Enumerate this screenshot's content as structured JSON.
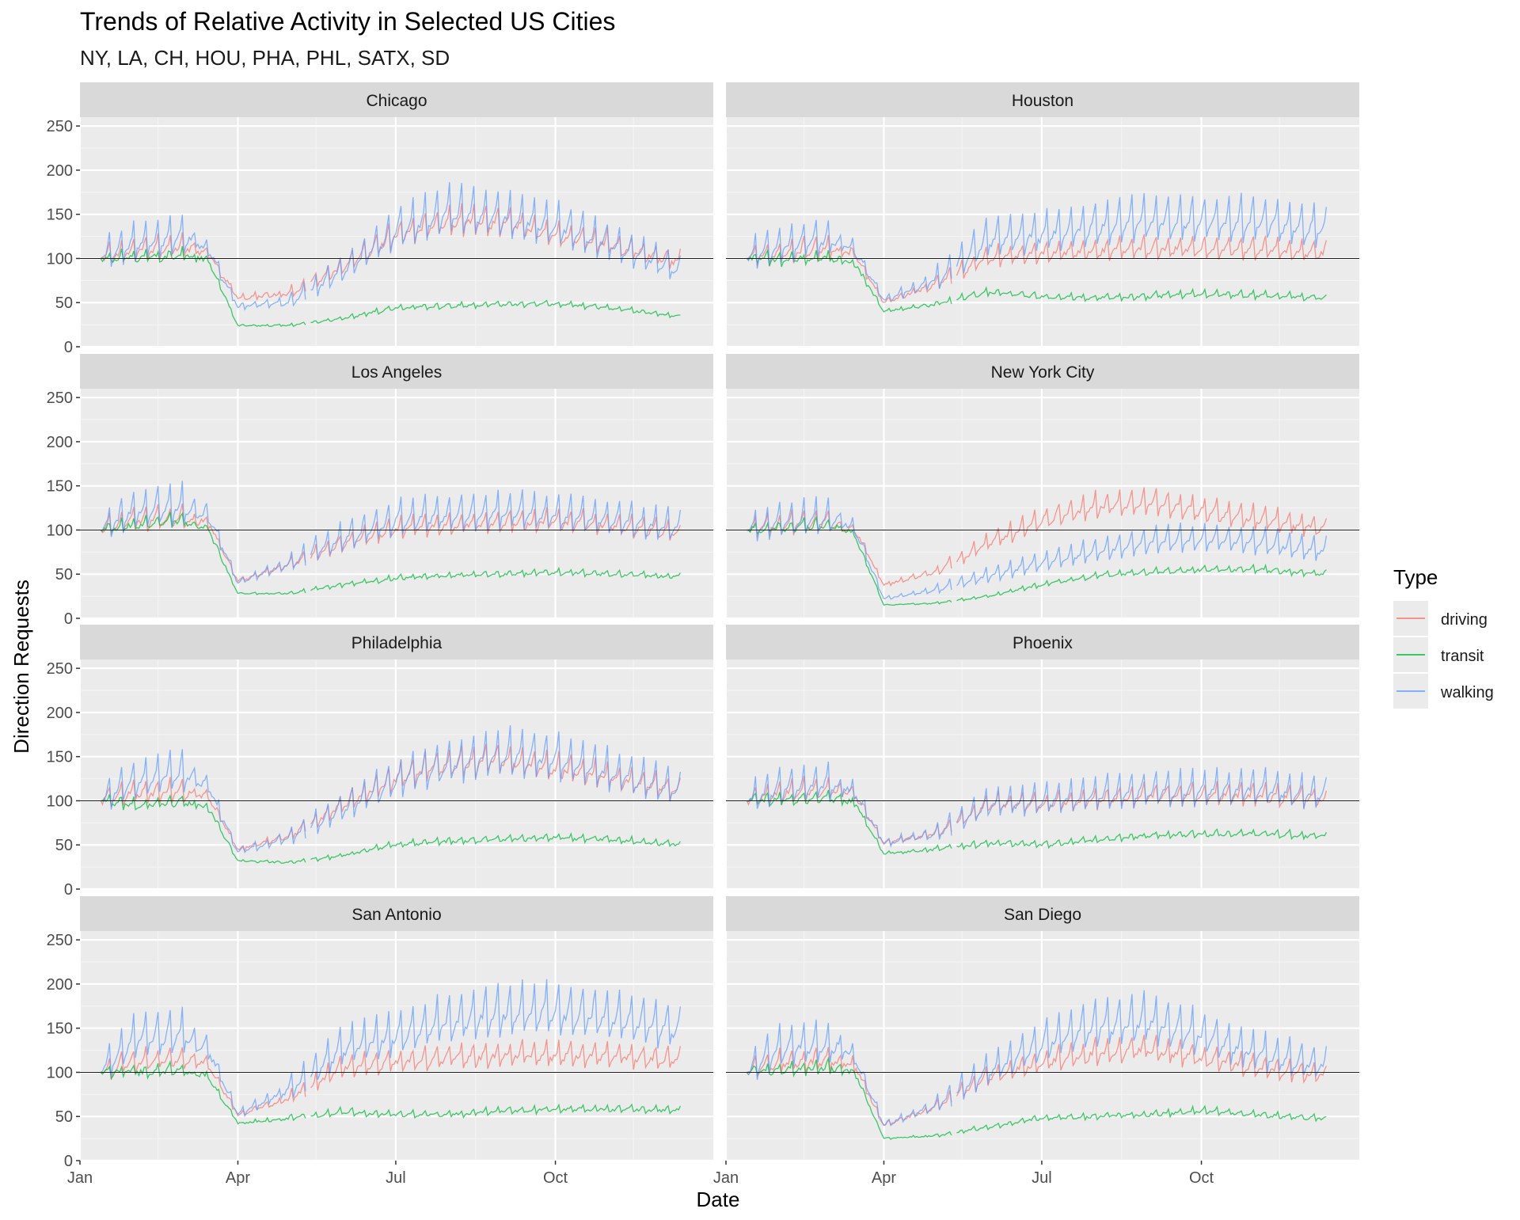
{
  "chart_data": {
    "type": "line",
    "title": "Trends of Relative Activity in Selected US Cities",
    "subtitle": "NY, LA, CH, HOU, PHA, PHL, SATX, SD",
    "xlabel": "Date",
    "ylabel": "Direction Requests",
    "x_axis": {
      "type": "date",
      "range": [
        "2020-01-01",
        "2020-12-31"
      ],
      "ticks": [
        "2020-01-01",
        "2020-04-01",
        "2020-07-01",
        "2020-10-01"
      ],
      "tick_labels": [
        "Jan",
        "Apr",
        "Jul",
        "Oct"
      ]
    },
    "ylim": [
      0,
      260
    ],
    "y_ticks": [
      0,
      50,
      100,
      150,
      200,
      250
    ],
    "baseline": 100,
    "grid": true,
    "legend": {
      "title": "Type",
      "position": "right",
      "entries": [
        "driving",
        "transit",
        "walking"
      ]
    },
    "colors": {
      "driving": "#F8766D",
      "transit": "#00BA38",
      "walking": "#619CFF"
    },
    "date_range": [
      "2020-01-13",
      "2020-12-12"
    ],
    "gap": [
      "2020-05-11",
      "2020-05-12"
    ],
    "panels": [
      {
        "name": "Chicago",
        "series": [
          {
            "name": "driving",
            "x": [
              "2020-01-13",
              "2020-02-01",
              "2020-03-01",
              "2020-03-15",
              "2020-04-01",
              "2020-05-01",
              "2020-06-01",
              "2020-07-01",
              "2020-08-01",
              "2020-09-01",
              "2020-10-01",
              "2020-11-01",
              "2020-12-12"
            ],
            "y": [
              100,
              108,
              112,
              105,
              55,
              60,
              90,
              125,
              140,
              140,
              125,
              115,
              95
            ]
          },
          {
            "name": "transit",
            "x": [
              "2020-01-13",
              "2020-02-01",
              "2020-03-01",
              "2020-03-15",
              "2020-04-01",
              "2020-05-01",
              "2020-06-01",
              "2020-07-01",
              "2020-08-01",
              "2020-09-01",
              "2020-10-01",
              "2020-11-01",
              "2020-12-12"
            ],
            "y": [
              100,
              100,
              103,
              98,
              24,
              24,
              32,
              44,
              46,
              48,
              48,
              44,
              34
            ]
          },
          {
            "name": "walking",
            "x": [
              "2020-01-13",
              "2020-02-01",
              "2020-03-01",
              "2020-03-15",
              "2020-04-01",
              "2020-05-01",
              "2020-06-01",
              "2020-07-01",
              "2020-08-01",
              "2020-09-01",
              "2020-10-01",
              "2020-11-01",
              "2020-12-12"
            ],
            "y": [
              100,
              115,
              125,
              110,
              45,
              50,
              85,
              130,
              150,
              145,
              135,
              115,
              85
            ]
          }
        ]
      },
      {
        "name": "Houston",
        "series": [
          {
            "name": "driving",
            "x": [
              "2020-01-13",
              "2020-02-01",
              "2020-03-01",
              "2020-03-15",
              "2020-04-01",
              "2020-05-01",
              "2020-06-01",
              "2020-07-01",
              "2020-08-01",
              "2020-09-01",
              "2020-10-01",
              "2020-11-01",
              "2020-12-12"
            ],
            "y": [
              100,
              105,
              110,
              105,
              50,
              70,
              100,
              105,
              108,
              110,
              110,
              110,
              105
            ]
          },
          {
            "name": "transit",
            "x": [
              "2020-01-13",
              "2020-02-01",
              "2020-03-01",
              "2020-03-15",
              "2020-04-01",
              "2020-05-01",
              "2020-06-01",
              "2020-07-01",
              "2020-08-01",
              "2020-09-01",
              "2020-10-01",
              "2020-11-01",
              "2020-12-12"
            ],
            "y": [
              100,
              98,
              100,
              95,
              40,
              48,
              62,
              56,
              55,
              57,
              60,
              58,
              55
            ]
          },
          {
            "name": "walking",
            "x": [
              "2020-01-13",
              "2020-02-01",
              "2020-03-01",
              "2020-03-15",
              "2020-04-01",
              "2020-05-01",
              "2020-06-01",
              "2020-07-01",
              "2020-08-01",
              "2020-09-01",
              "2020-10-01",
              "2020-11-01",
              "2020-12-12"
            ],
            "y": [
              100,
              112,
              120,
              110,
              52,
              75,
              120,
              125,
              135,
              140,
              140,
              140,
              130
            ]
          }
        ]
      },
      {
        "name": "Los Angeles",
        "series": [
          {
            "name": "driving",
            "x": [
              "2020-01-13",
              "2020-02-01",
              "2020-03-01",
              "2020-03-15",
              "2020-04-01",
              "2020-05-01",
              "2020-06-01",
              "2020-07-01",
              "2020-08-01",
              "2020-09-01",
              "2020-10-01",
              "2020-11-01",
              "2020-12-12"
            ],
            "y": [
              100,
              110,
              112,
              108,
              42,
              60,
              85,
              100,
              105,
              108,
              108,
              105,
              95
            ]
          },
          {
            "name": "transit",
            "x": [
              "2020-01-13",
              "2020-02-01",
              "2020-03-01",
              "2020-03-15",
              "2020-04-01",
              "2020-05-01",
              "2020-06-01",
              "2020-07-01",
              "2020-08-01",
              "2020-09-01",
              "2020-10-01",
              "2020-11-01",
              "2020-12-12"
            ],
            "y": [
              100,
              105,
              110,
              100,
              28,
              28,
              38,
              45,
              48,
              50,
              52,
              50,
              47
            ]
          },
          {
            "name": "walking",
            "x": [
              "2020-01-13",
              "2020-02-01",
              "2020-03-01",
              "2020-03-15",
              "2020-04-01",
              "2020-05-01",
              "2020-06-01",
              "2020-07-01",
              "2020-08-01",
              "2020-09-01",
              "2020-10-01",
              "2020-11-01",
              "2020-12-12"
            ],
            "y": [
              100,
              120,
              125,
              115,
              40,
              62,
              90,
              110,
              115,
              118,
              115,
              110,
              100
            ]
          }
        ]
      },
      {
        "name": "New York City",
        "series": [
          {
            "name": "driving",
            "x": [
              "2020-01-13",
              "2020-02-01",
              "2020-03-01",
              "2020-03-15",
              "2020-04-01",
              "2020-05-01",
              "2020-06-01",
              "2020-07-01",
              "2020-08-01",
              "2020-09-01",
              "2020-10-01",
              "2020-11-01",
              "2020-12-12"
            ],
            "y": [
              100,
              105,
              108,
              100,
              38,
              52,
              85,
              110,
              125,
              130,
              120,
              112,
              100
            ]
          },
          {
            "name": "transit",
            "x": [
              "2020-01-13",
              "2020-02-01",
              "2020-03-01",
              "2020-03-15",
              "2020-04-01",
              "2020-05-01",
              "2020-06-01",
              "2020-07-01",
              "2020-08-01",
              "2020-09-01",
              "2020-10-01",
              "2020-11-01",
              "2020-12-12"
            ],
            "y": [
              100,
              102,
              105,
              95,
              15,
              17,
              25,
              38,
              48,
              52,
              55,
              55,
              50
            ]
          },
          {
            "name": "walking",
            "x": [
              "2020-01-13",
              "2020-02-01",
              "2020-03-01",
              "2020-03-15",
              "2020-04-01",
              "2020-05-01",
              "2020-06-01",
              "2020-07-01",
              "2020-08-01",
              "2020-09-01",
              "2020-10-01",
              "2020-11-01",
              "2020-12-12"
            ],
            "y": [
              100,
              108,
              112,
              102,
              22,
              32,
              48,
              62,
              75,
              85,
              88,
              85,
              75
            ]
          }
        ]
      },
      {
        "name": "Philadelphia",
        "series": [
          {
            "name": "driving",
            "x": [
              "2020-01-13",
              "2020-02-01",
              "2020-03-01",
              "2020-03-15",
              "2020-04-01",
              "2020-05-01",
              "2020-06-01",
              "2020-07-01",
              "2020-08-01",
              "2020-09-01",
              "2020-10-01",
              "2020-11-01",
              "2020-12-12"
            ],
            "y": [
              100,
              108,
              110,
              105,
              45,
              60,
              95,
              125,
              140,
              145,
              135,
              125,
              110
            ]
          },
          {
            "name": "transit",
            "x": [
              "2020-01-13",
              "2020-02-01",
              "2020-03-01",
              "2020-03-15",
              "2020-04-01",
              "2020-05-01",
              "2020-06-01",
              "2020-07-01",
              "2020-08-01",
              "2020-09-01",
              "2020-10-01",
              "2020-11-01",
              "2020-12-12"
            ],
            "y": [
              100,
              95,
              98,
              92,
              32,
              30,
              38,
              50,
              54,
              56,
              58,
              56,
              50
            ]
          },
          {
            "name": "walking",
            "x": [
              "2020-01-13",
              "2020-02-01",
              "2020-03-01",
              "2020-03-15",
              "2020-04-01",
              "2020-05-01",
              "2020-06-01",
              "2020-07-01",
              "2020-08-01",
              "2020-09-01",
              "2020-10-01",
              "2020-11-01",
              "2020-12-12"
            ],
            "y": [
              100,
              120,
              130,
              115,
              42,
              58,
              90,
              120,
              140,
              150,
              145,
              130,
              110
            ]
          }
        ]
      },
      {
        "name": "Phoenix",
        "series": [
          {
            "name": "driving",
            "x": [
              "2020-01-13",
              "2020-02-01",
              "2020-03-01",
              "2020-03-15",
              "2020-04-01",
              "2020-05-01",
              "2020-06-01",
              "2020-07-01",
              "2020-08-01",
              "2020-09-01",
              "2020-10-01",
              "2020-11-01",
              "2020-12-12"
            ],
            "y": [
              100,
              108,
              112,
              108,
              52,
              62,
              95,
              95,
              100,
              105,
              105,
              105,
              100
            ]
          },
          {
            "name": "transit",
            "x": [
              "2020-01-13",
              "2020-02-01",
              "2020-03-01",
              "2020-03-15",
              "2020-04-01",
              "2020-05-01",
              "2020-06-01",
              "2020-07-01",
              "2020-08-01",
              "2020-09-01",
              "2020-10-01",
              "2020-11-01",
              "2020-12-12"
            ],
            "y": [
              100,
              100,
              102,
              98,
              40,
              45,
              52,
              50,
              55,
              60,
              62,
              62,
              60
            ]
          },
          {
            "name": "walking",
            "x": [
              "2020-01-13",
              "2020-02-01",
              "2020-03-01",
              "2020-03-15",
              "2020-04-01",
              "2020-05-01",
              "2020-06-01",
              "2020-07-01",
              "2020-08-01",
              "2020-09-01",
              "2020-10-01",
              "2020-11-01",
              "2020-12-12"
            ],
            "y": [
              100,
              112,
              118,
              110,
              52,
              62,
              95,
              98,
              105,
              110,
              110,
              112,
              105
            ]
          }
        ]
      },
      {
        "name": "San Antonio",
        "series": [
          {
            "name": "driving",
            "x": [
              "2020-01-13",
              "2020-02-01",
              "2020-03-01",
              "2020-03-15",
              "2020-04-01",
              "2020-05-01",
              "2020-06-01",
              "2020-07-01",
              "2020-08-01",
              "2020-09-01",
              "2020-10-01",
              "2020-11-01",
              "2020-12-12"
            ],
            "y": [
              100,
              110,
              115,
              108,
              52,
              70,
              105,
              110,
              115,
              118,
              118,
              118,
              112
            ]
          },
          {
            "name": "transit",
            "x": [
              "2020-01-13",
              "2020-02-01",
              "2020-03-01",
              "2020-03-15",
              "2020-04-01",
              "2020-05-01",
              "2020-06-01",
              "2020-07-01",
              "2020-08-01",
              "2020-09-01",
              "2020-10-01",
              "2020-11-01",
              "2020-12-12"
            ],
            "y": [
              100,
              100,
              102,
              95,
              42,
              48,
              55,
              52,
              52,
              56,
              58,
              58,
              57
            ]
          },
          {
            "name": "walking",
            "x": [
              "2020-01-13",
              "2020-02-01",
              "2020-03-01",
              "2020-03-15",
              "2020-04-01",
              "2020-05-01",
              "2020-06-01",
              "2020-07-01",
              "2020-08-01",
              "2020-09-01",
              "2020-10-01",
              "2020-11-01",
              "2020-12-12"
            ],
            "y": [
              100,
              135,
              140,
              125,
              52,
              80,
              125,
              140,
              155,
              165,
              165,
              160,
              145
            ]
          }
        ]
      },
      {
        "name": "San Diego",
        "series": [
          {
            "name": "driving",
            "x": [
              "2020-01-13",
              "2020-02-01",
              "2020-03-01",
              "2020-03-15",
              "2020-04-01",
              "2020-05-01",
              "2020-06-01",
              "2020-07-01",
              "2020-08-01",
              "2020-09-01",
              "2020-10-01",
              "2020-11-01",
              "2020-12-12"
            ],
            "y": [
              100,
              110,
              112,
              108,
              40,
              60,
              95,
              110,
              120,
              125,
              115,
              105,
              95
            ]
          },
          {
            "name": "transit",
            "x": [
              "2020-01-13",
              "2020-02-01",
              "2020-03-01",
              "2020-03-15",
              "2020-04-01",
              "2020-05-01",
              "2020-06-01",
              "2020-07-01",
              "2020-08-01",
              "2020-09-01",
              "2020-10-01",
              "2020-11-01",
              "2020-12-12"
            ],
            "y": [
              100,
              102,
              105,
              100,
              25,
              28,
              38,
              48,
              50,
              52,
              56,
              52,
              47
            ]
          },
          {
            "name": "walking",
            "x": [
              "2020-01-13",
              "2020-02-01",
              "2020-03-01",
              "2020-03-15",
              "2020-04-01",
              "2020-05-01",
              "2020-06-01",
              "2020-07-01",
              "2020-08-01",
              "2020-09-01",
              "2020-10-01",
              "2020-11-01",
              "2020-12-12"
            ],
            "y": [
              100,
              125,
              130,
              118,
              40,
              62,
              100,
              130,
              150,
              155,
              140,
              120,
              105
            ]
          }
        ]
      }
    ]
  }
}
